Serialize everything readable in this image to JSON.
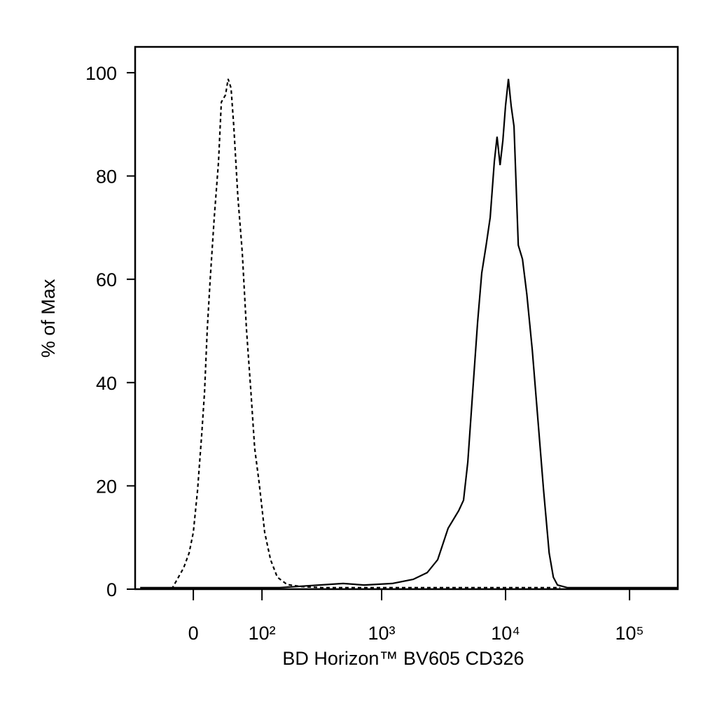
{
  "chart_data": {
    "type": "line",
    "x_label": "BD Horizon™ BV605 CD326",
    "y_label": "% of Max",
    "xscale": {
      "type": "asinh",
      "cofactor": 60.6
    },
    "xlim": [
      -79,
      245000
    ],
    "xticks": [
      0,
      {
        "value": 100,
        "label": "10²"
      },
      {
        "value": 1000,
        "label": "10³"
      },
      {
        "value": 10000,
        "label": "10⁴"
      },
      {
        "value": 100000,
        "label": "10⁵"
      }
    ],
    "ylim": [
      0,
      105
    ],
    "yticks": [
      0,
      20,
      40,
      60,
      80,
      100
    ],
    "series": [
      {
        "color": "#000000",
        "dash": true,
        "x": [
          -25,
          -17,
          -11,
          -4.7,
          0,
          4.7,
          9.5,
          12.7,
          15.9,
          19.2,
          24.2,
          29.4,
          33,
          38.5,
          42,
          46,
          50,
          56,
          63,
          70,
          78,
          85,
          94,
          106,
          120,
          138,
          168,
          220,
          329,
          722,
          2650,
          9760,
          27600
        ],
        "values": [
          0,
          2.3,
          4.1,
          7.0,
          11.0,
          19.1,
          30.0,
          38.1,
          50.3,
          59.8,
          72.0,
          82.8,
          94.3,
          95.7,
          98.8,
          97.0,
          89.6,
          76.0,
          65.2,
          50.3,
          38.1,
          27.3,
          20.6,
          11.0,
          5.7,
          2.3,
          0.9,
          0.5,
          0.3,
          0.3,
          0.3,
          0.3,
          0.3
        ]
      },
      {
        "color": "#000000",
        "dash": false,
        "x": [
          -70,
          145,
          488,
          722,
          1218,
          1800,
          2333,
          2836,
          3442,
          4187,
          4581,
          4957,
          5430,
          5951,
          6424,
          6969,
          7514,
          8120,
          8545,
          9029,
          9514,
          10000,
          10544,
          11090,
          11696,
          12665,
          13696,
          14847,
          16423,
          18241,
          20240,
          22483,
          24300,
          26240,
          31450,
          245000
        ],
        "values": [
          0.3,
          0.3,
          1.1,
          0.8,
          1.1,
          1.9,
          3.2,
          5.7,
          11.8,
          15.2,
          17.2,
          24.6,
          38.2,
          51.7,
          61.2,
          66.6,
          72.0,
          82.8,
          87.6,
          82.1,
          86.9,
          93.6,
          98.8,
          93.6,
          89.6,
          66.6,
          63.9,
          57.1,
          46.3,
          32.7,
          19.2,
          7.0,
          2.3,
          0.8,
          0.3,
          0.3
        ]
      }
    ]
  }
}
